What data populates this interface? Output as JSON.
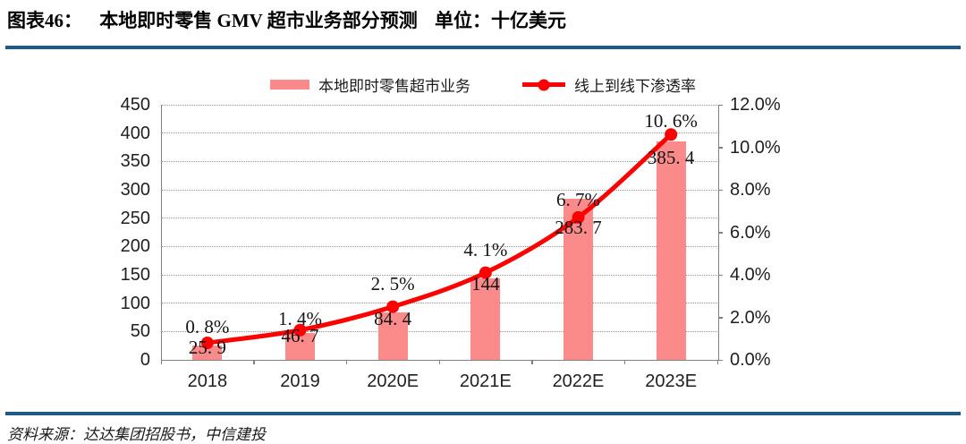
{
  "header": {
    "figure_label": "图表46：",
    "title": "本地即时零售 GMV 超市业务部分预测",
    "unit": "单位：十亿美元"
  },
  "page": {
    "source": "资料来源：达达集团招股书，中信建投"
  },
  "colors": {
    "bar": "#fb8a8a",
    "line": "#fe0000",
    "rule": "#1d5a87",
    "grid": "#8f8f8f",
    "axis": "#808080",
    "label_text": "#141414"
  },
  "chart_data": {
    "type": "bar+line combo",
    "title": "本地即时零售 GMV 超市业务部分预测",
    "unit": "十亿美元",
    "categories": [
      "2018",
      "2019",
      "2020E",
      "2021E",
      "2022E",
      "2023E"
    ],
    "series": [
      {
        "name": "本地即时零售超市业务",
        "type": "bar",
        "axis": "left",
        "values": [
          25.9,
          46.7,
          84.4,
          144,
          283.7,
          385.4
        ],
        "labels": [
          "25. 9",
          "46. 7",
          "84. 4",
          "144",
          "283. 7",
          "385. 4"
        ]
      },
      {
        "name": "线上到线下渗透率",
        "type": "line",
        "axis": "right",
        "values_pct": [
          0.8,
          1.4,
          2.5,
          4.1,
          6.7,
          10.6
        ],
        "labels": [
          "0. 8%",
          "1. 4%",
          "2. 5%",
          "4. 1%",
          "6. 7%",
          "10. 6%"
        ]
      }
    ],
    "left_axis": {
      "min": 0,
      "max": 450,
      "step": 50,
      "ticks": [
        "0",
        "50",
        "100",
        "150",
        "200",
        "250",
        "300",
        "350",
        "400",
        "450"
      ]
    },
    "right_axis": {
      "min": 0,
      "max": 12,
      "step": 2,
      "ticks": [
        "0.0%",
        "2.0%",
        "4.0%",
        "6.0%",
        "8.0%",
        "10.0%",
        "12.0%"
      ]
    },
    "grid": "dotted horizontal, left-axis intervals",
    "legend_position": "top center"
  }
}
